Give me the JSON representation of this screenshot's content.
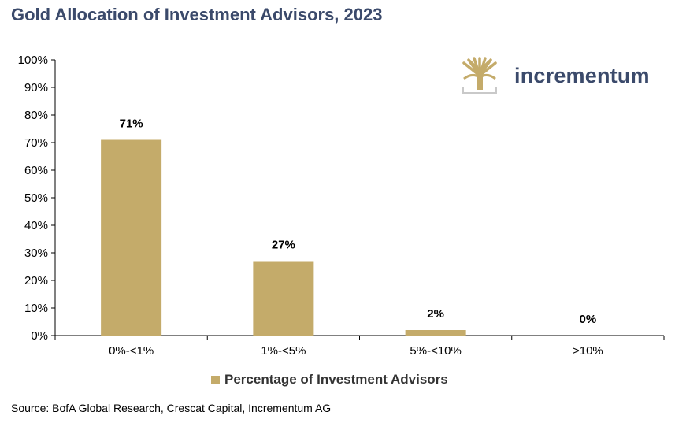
{
  "title": "Gold Allocation of Investment Advisors, 2023",
  "source": "Source: BofA Global Research, Crescat Capital, Incrementum AG",
  "logo": {
    "text": "incrementum",
    "icon": "tree-logo-icon",
    "color": "#c4ab6a"
  },
  "colors": {
    "bar": "#c4ab6a",
    "title": "#3b4a6b"
  },
  "chart_data": {
    "type": "bar",
    "title": "Gold Allocation of Investment Advisors, 2023",
    "xlabel": "",
    "ylabel": "",
    "categories": [
      "0%-<1%",
      "1%-<5%",
      "5%-<10%",
      ">10%"
    ],
    "series": [
      {
        "name": "Percentage of Investment Advisors",
        "values": [
          71,
          27,
          2,
          0
        ]
      }
    ],
    "data_labels": [
      "71%",
      "27%",
      "2%",
      "0%"
    ],
    "ylim": [
      0,
      100
    ],
    "yticks": [
      0,
      10,
      20,
      30,
      40,
      50,
      60,
      70,
      80,
      90,
      100
    ],
    "ytick_labels": [
      "0%",
      "10%",
      "20%",
      "30%",
      "40%",
      "50%",
      "60%",
      "70%",
      "80%",
      "90%",
      "100%"
    ],
    "grid": false,
    "legend": "bottom"
  }
}
